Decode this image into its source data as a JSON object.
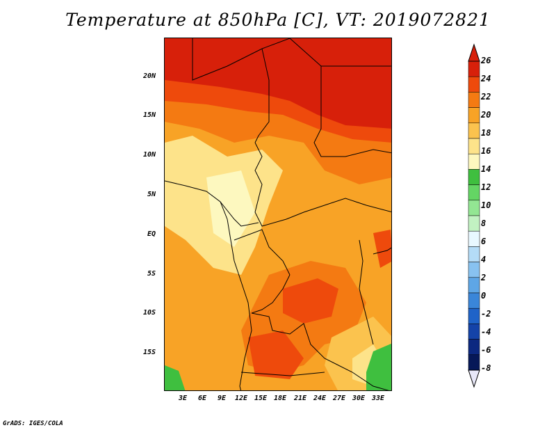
{
  "title": "Temperature at 850hPa [C], VT: 2019072821",
  "credit": "GrADS: IGES/COLA",
  "map": {
    "variable": "Temperature at 850hPa",
    "units": "C",
    "valid_time": "2019072821",
    "lat_ticks": [
      "20N",
      "15N",
      "10N",
      "5N",
      "EQ",
      "5S",
      "10S",
      "15S"
    ],
    "lon_ticks": [
      "3E",
      "6E",
      "9E",
      "12E",
      "15E",
      "18E",
      "21E",
      "24E",
      "27E",
      "30E",
      "33E"
    ]
  },
  "colorbar": {
    "labels": [
      "26",
      "24",
      "22",
      "20",
      "18",
      "16",
      "14",
      "12",
      "10",
      "8",
      "6",
      "4",
      "2",
      "0",
      "-2",
      "-4",
      "-6",
      "-8"
    ],
    "colors": [
      "#d7200a",
      "#ee4a0c",
      "#f47a12",
      "#f8a326",
      "#fbc34e",
      "#fde38a",
      "#fdf8bf",
      "#3fbf3f",
      "#64d564",
      "#93e693",
      "#c2f2c2",
      "#e8f8ff",
      "#b4dcf7",
      "#88c2f0",
      "#5ea6e6",
      "#3a86d9",
      "#1f63c8",
      "#1443a8",
      "#0c2880",
      "#061858"
    ]
  },
  "colors": {
    "hot": "#d7200a",
    "warm": "#f47a12",
    "mild": "#fbc34e",
    "cool": "#fde38a",
    "green": "#3fbf3f"
  }
}
